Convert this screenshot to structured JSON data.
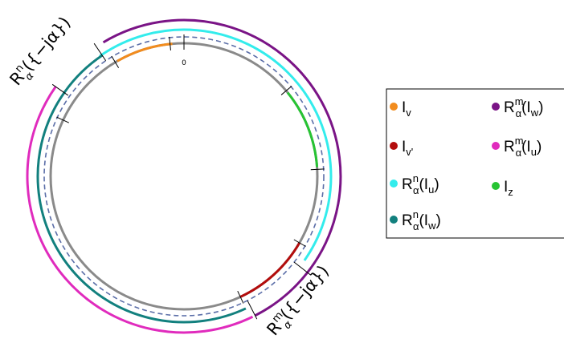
{
  "diagram": {
    "zero_label": "0",
    "circles": {
      "base_color": "#8a8a8a",
      "dashed_color": "#5b6ea8"
    },
    "arcs": {
      "I_v": "#f28c1e",
      "I_v_prime": "#b30d0d",
      "I_z": "#27c433",
      "R_n_Iu": "#33ecec",
      "R_n_Iw": "#12807e",
      "R_m_Iw": "#7a1486",
      "R_m_Iu": "#e02bbd"
    },
    "rotated_labels": {
      "left": {
        "base": "R",
        "sup": "n",
        "sub": "α",
        "rest": "({−jα})"
      },
      "bottom": {
        "base": "R",
        "sup": "m",
        "sub": "α",
        "rest": "({−jα})"
      }
    },
    "legend": {
      "col1": [
        {
          "id": "Iv",
          "base": "I",
          "sub": "v",
          "color": "#f28c1e"
        },
        {
          "id": "Ivp",
          "base": "I",
          "sub": "v'",
          "color": "#b30d0d"
        },
        {
          "id": "RnIu",
          "base": "R",
          "sup": "n",
          "sub": "α",
          "rest": "(I",
          "rest_sub": "u",
          "close": ")",
          "color": "#33ecec"
        },
        {
          "id": "RnIw",
          "base": "R",
          "sup": "n",
          "sub": "α",
          "rest": "(I",
          "rest_sub": "w",
          "close": ")",
          "color": "#12807e"
        }
      ],
      "col2": [
        {
          "id": "RmIw",
          "base": "R",
          "sup": "m",
          "sub": "α",
          "rest": "(I",
          "rest_sub": "w",
          "close": ")",
          "color": "#7a1486"
        },
        {
          "id": "RmIu",
          "base": "R",
          "sup": "m",
          "sub": "α",
          "rest": "(I",
          "rest_sub": "u",
          "close": ")",
          "color": "#e02bbd"
        },
        {
          "id": "Iz",
          "base": "I",
          "sub": "z",
          "color": "#27c433"
        }
      ]
    }
  }
}
